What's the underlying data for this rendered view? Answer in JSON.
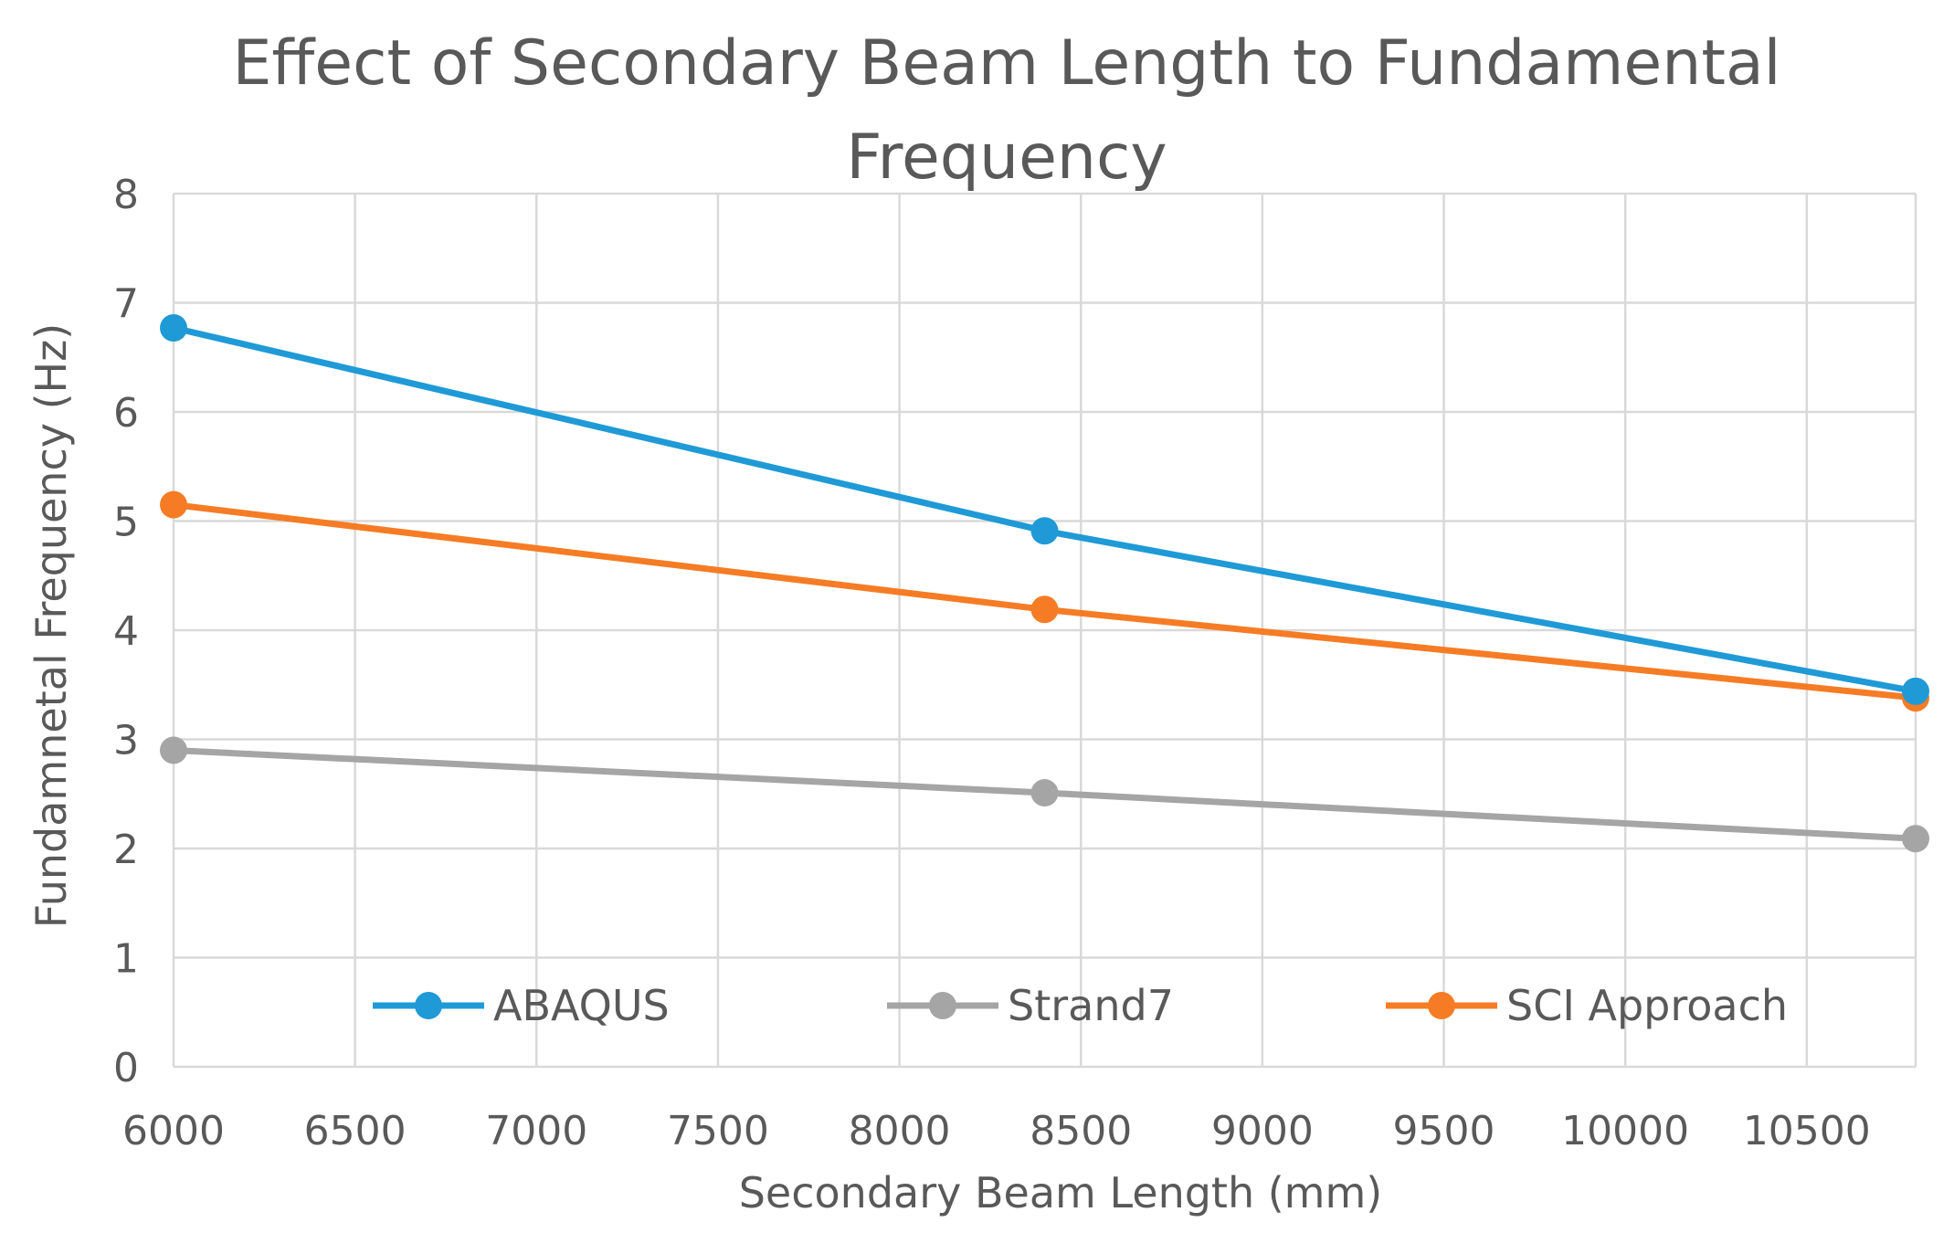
{
  "chart_data": {
    "type": "line",
    "title": [
      "Effect of Secondary Beam Length to Fundamental",
      "Frequency"
    ],
    "xlabel": "Secondary Beam Length (mm)",
    "ylabel": "Fundamnetal Frequency (Hz)",
    "xlim": [
      6000,
      10800
    ],
    "ylim": [
      0,
      8
    ],
    "x_ticks": [
      "6000",
      "6500",
      "7000",
      "7500",
      "8000",
      "8500",
      "9000",
      "9500",
      "10000",
      "10500"
    ],
    "y_ticks": [
      "0",
      "1",
      "2",
      "3",
      "4",
      "5",
      "6",
      "7",
      "8"
    ],
    "grid": true,
    "legend_position": "bottom-inside",
    "x": [
      6000,
      8400,
      10800
    ],
    "series": [
      {
        "name": "ABAQUS",
        "color": "#1f9ad6",
        "values": [
          6.77,
          4.91,
          3.44
        ]
      },
      {
        "name": "Strand7",
        "color": "#a5a5a5",
        "values": [
          2.9,
          2.51,
          2.09
        ]
      },
      {
        "name": "SCI Approach",
        "color": "#f57c25",
        "values": [
          5.15,
          4.19,
          3.38
        ]
      }
    ]
  }
}
